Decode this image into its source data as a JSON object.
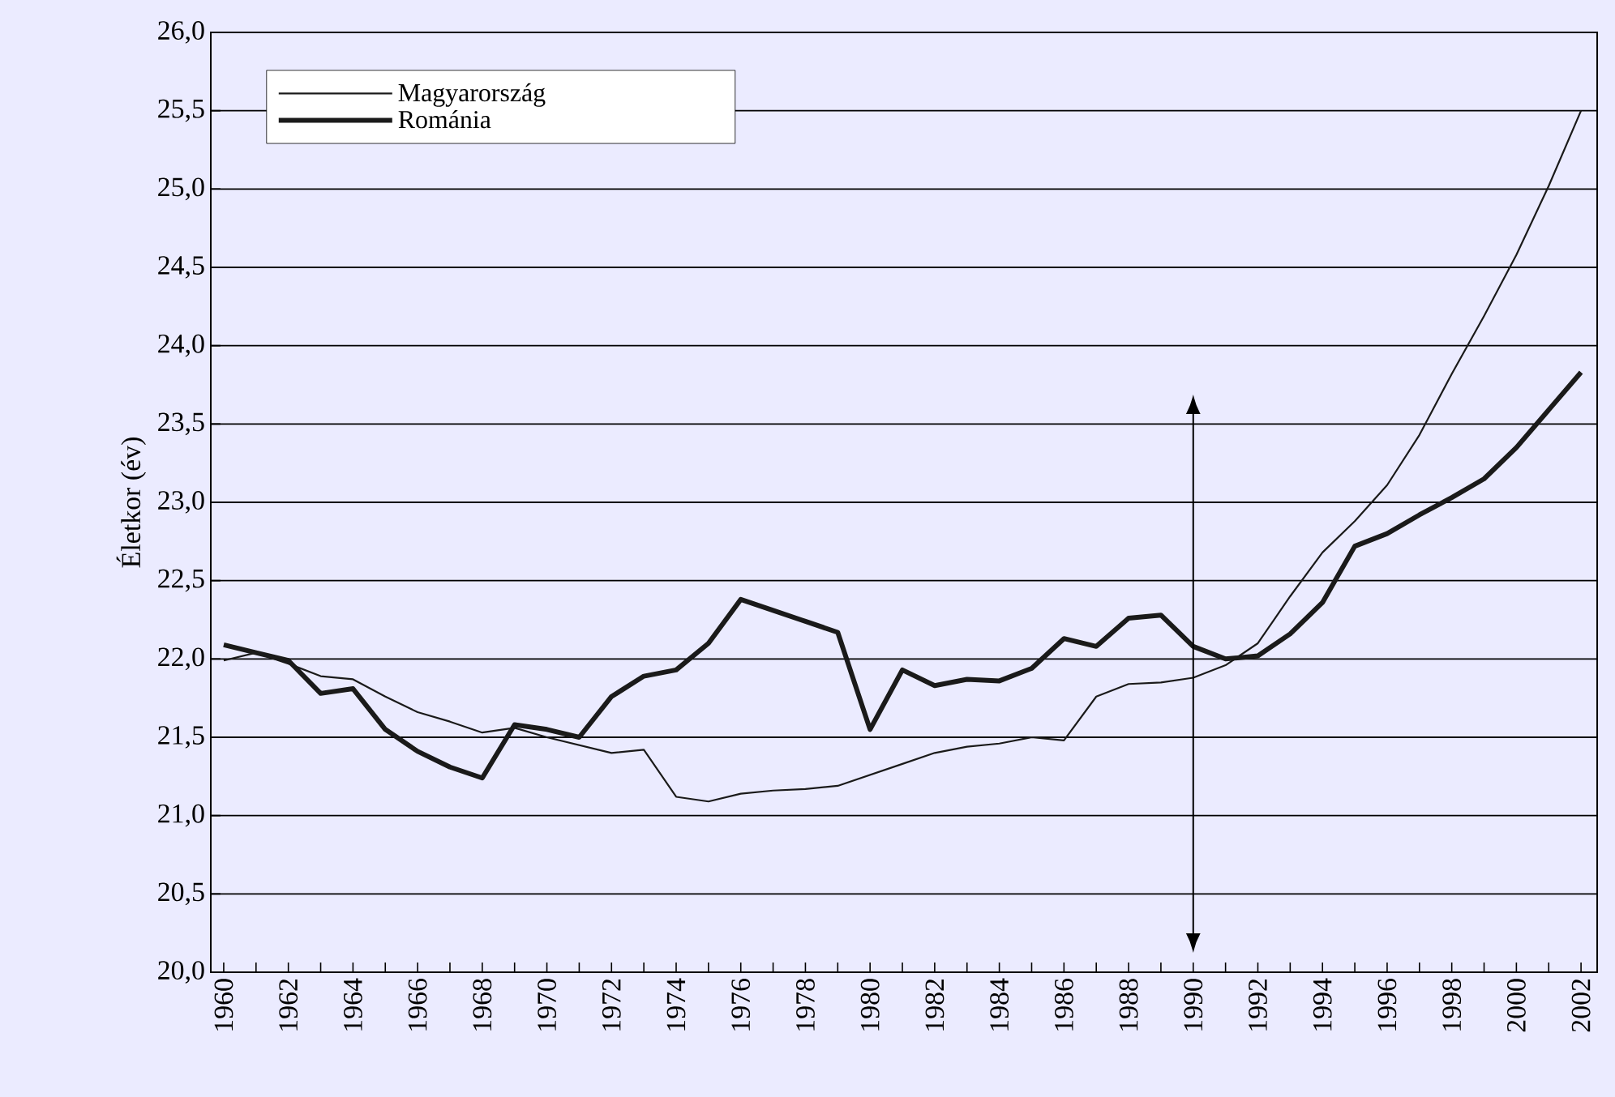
{
  "chart_data": {
    "type": "line",
    "ylabel": "Életkor (év)",
    "x": [
      1960,
      1961,
      1962,
      1963,
      1964,
      1965,
      1966,
      1967,
      1968,
      1969,
      1970,
      1971,
      1972,
      1973,
      1974,
      1975,
      1976,
      1977,
      1978,
      1979,
      1980,
      1981,
      1982,
      1983,
      1984,
      1985,
      1986,
      1987,
      1988,
      1989,
      1990,
      1991,
      1992,
      1993,
      1994,
      1995,
      1996,
      1997,
      1998,
      1999,
      2000,
      2001,
      2002
    ],
    "series": [
      {
        "name": "Magyarország",
        "color": "#1a1a1a",
        "values": [
          21.99,
          22.04,
          21.97,
          21.89,
          21.87,
          21.76,
          21.66,
          21.6,
          21.53,
          21.56,
          21.5,
          21.45,
          21.4,
          21.42,
          21.12,
          21.09,
          21.14,
          21.16,
          21.17,
          21.19,
          21.26,
          21.33,
          21.4,
          21.44,
          21.46,
          21.5,
          21.48,
          21.76,
          21.84,
          21.85,
          21.88,
          21.96,
          22.1,
          22.4,
          22.68,
          22.88,
          23.11,
          23.43,
          23.82,
          24.19,
          24.58,
          25.02,
          25.5
        ]
      },
      {
        "name": "Románia",
        "color": "#1a1a1a",
        "values": [
          22.09,
          22.04,
          21.99,
          21.78,
          21.81,
          21.55,
          21.41,
          21.31,
          21.24,
          21.58,
          21.55,
          21.5,
          21.76,
          21.89,
          21.93,
          22.1,
          22.38,
          22.31,
          22.24,
          22.17,
          21.55,
          21.93,
          21.83,
          21.87,
          21.86,
          21.94,
          22.13,
          22.08,
          22.26,
          22.28,
          22.08,
          22.0,
          22.02,
          22.16,
          22.36,
          22.72,
          22.8,
          22.92,
          23.03,
          23.15,
          23.35,
          23.59,
          23.83
        ]
      }
    ],
    "xlim": [
      1959.6,
      2002.5
    ],
    "xticks": [
      1960,
      {
        "value": 1961,
        "label": null
      },
      1962,
      {
        "value": 1963,
        "label": null
      },
      1964,
      {
        "value": 1965,
        "label": null
      },
      1966,
      {
        "value": 1967,
        "label": null
      },
      1968,
      {
        "value": 1969,
        "label": null
      },
      1970,
      {
        "value": 1971,
        "label": null
      },
      1972,
      {
        "value": 1973,
        "label": null
      },
      1974,
      {
        "value": 1975,
        "label": null
      },
      1976,
      {
        "value": 1977,
        "label": null
      },
      1978,
      {
        "value": 1979,
        "label": null
      },
      1980,
      {
        "value": 1981,
        "label": null
      },
      1982,
      {
        "value": 1983,
        "label": null
      },
      1984,
      {
        "value": 1985,
        "label": null
      },
      1986,
      {
        "value": 1987,
        "label": null
      },
      1988,
      {
        "value": 1989,
        "label": null
      },
      1990,
      {
        "value": 1991,
        "label": null
      },
      1992,
      {
        "value": 1993,
        "label": null
      },
      1994,
      {
        "value": 1995,
        "label": null
      },
      1996,
      {
        "value": 1997,
        "label": null
      },
      1998,
      {
        "value": 1999,
        "label": null
      },
      2000,
      {
        "value": 2001,
        "label": null
      },
      2002
    ],
    "ylim": [
      20,
      26
    ],
    "yticks": [
      {
        "value": 20,
        "label": "20,0"
      },
      {
        "value": 20.5,
        "label": "20,5"
      },
      {
        "value": 21,
        "label": "21,0"
      },
      {
        "value": 21.5,
        "label": "21,5"
      },
      {
        "value": 22,
        "label": "22,0"
      },
      {
        "value": 22.5,
        "label": "22,5"
      },
      {
        "value": 23,
        "label": "23,0"
      },
      {
        "value": 23.5,
        "label": "23,5"
      },
      {
        "value": 24,
        "label": "24,0"
      },
      {
        "value": 24.5,
        "label": "24,5"
      },
      {
        "value": 25,
        "label": "25,0"
      },
      {
        "value": 25.5,
        "label": "25,5"
      },
      {
        "value": 26,
        "label": "26,0"
      }
    ],
    "grid": "y",
    "legend": "top left",
    "marker": "none",
    "line_style": "solid",
    "ref_lines": [
      {
        "axis": "x",
        "value": 1990
      }
    ]
  }
}
